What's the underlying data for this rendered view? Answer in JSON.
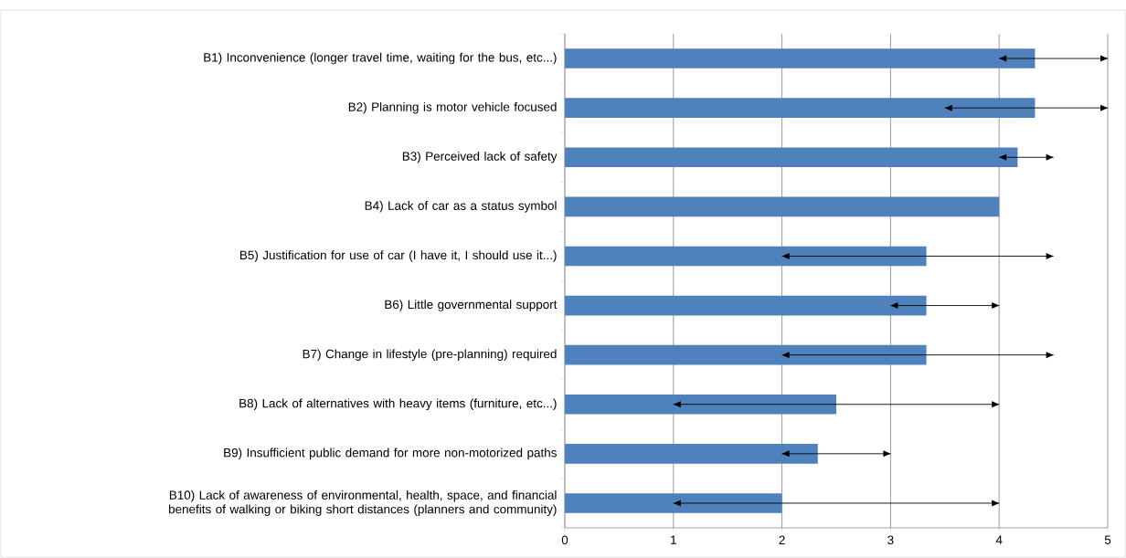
{
  "chart_data": {
    "type": "bar",
    "orientation": "horizontal",
    "categories": [
      "B1) Inconvenience (longer travel time, waiting for the bus, etc...)",
      "B2) Planning is motor vehicle focused",
      "B3) Perceived lack of safety",
      "B4) Lack of car as a status symbol",
      "B5) Justification for use of car (I have it, I should use it...)",
      "B6) Little governmental support",
      "B7) Change in lifestyle (pre-planning)  required",
      "B8) Lack of alternatives with heavy items (furniture, etc...)",
      "B9) Insufficient public demand for more non-motorized paths",
      "B10) Lack of awareness of environmental, health, space, and financial benefits of walking or biking short distances (planners and community)"
    ],
    "values": [
      4.33,
      4.33,
      4.17,
      4.0,
      3.33,
      3.33,
      3.33,
      2.5,
      2.33,
      2.0
    ],
    "errors": [
      [
        4,
        5
      ],
      [
        3.5,
        5
      ],
      [
        4,
        4.5
      ],
      null,
      [
        2,
        4.5
      ],
      [
        3,
        4
      ],
      [
        2,
        4.5
      ],
      [
        1,
        4
      ],
      [
        2,
        3
      ],
      [
        1,
        4
      ]
    ],
    "color": "#4f81bd",
    "xlim": [
      0,
      5
    ],
    "xticks": [
      0,
      1,
      2,
      3,
      4,
      5
    ],
    "grid": "x"
  }
}
